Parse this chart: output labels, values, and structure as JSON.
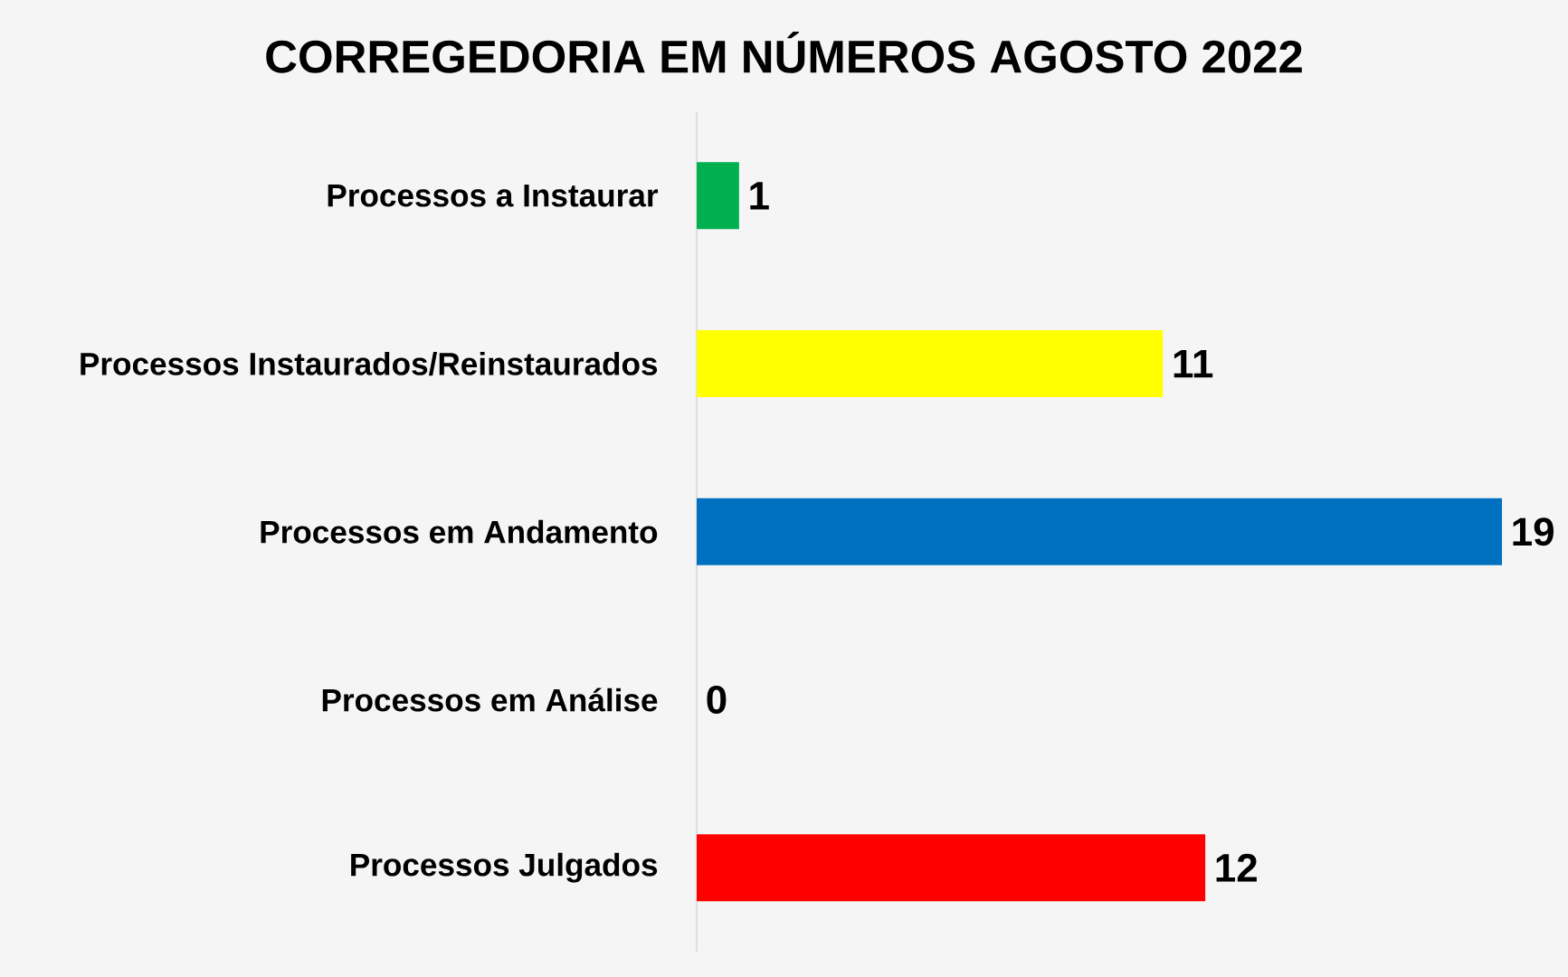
{
  "chart_data": {
    "type": "bar",
    "orientation": "horizontal",
    "title": "CORREGEDORIA EM NÚMEROS AGOSTO 2022",
    "categories": [
      "Processos a Instaurar",
      "Processos Instaurados/Reinstaurados",
      "Processos em Andamento",
      "Processos em Análise",
      "Processos Julgados"
    ],
    "values": [
      1,
      11,
      19,
      0,
      12
    ],
    "colors": [
      "#00b050",
      "#ffff00",
      "#0070c0",
      null,
      "#ff0000"
    ],
    "data_labels": true,
    "tick_labels": "y"
  }
}
